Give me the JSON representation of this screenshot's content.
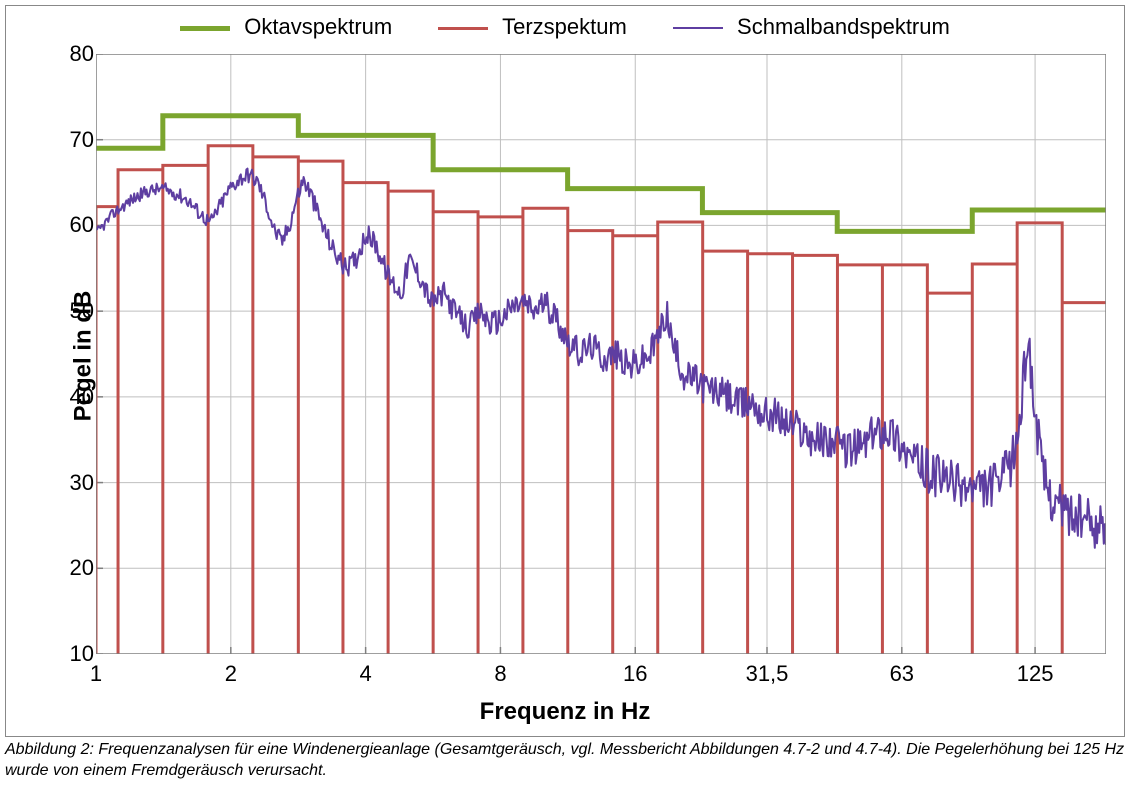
{
  "caption": "Abbildung 2: Frequenzanalysen für eine Windenergieanlage (Gesamtgeräusch, vgl. Messbericht Abbildungen 4.7-2 und 4.7-4). Die Pegelerhöhung bei 125 Hz wurde von einem Fremdgeräusch verursacht.",
  "legend": {
    "items": [
      {
        "label": "Oktavspektrum",
        "color": "#7ba52e",
        "width": 5
      },
      {
        "label": "Terzspektum",
        "color": "#c0504d",
        "width": 3
      },
      {
        "label": "Schmalbandspektrum",
        "color": "#5e3ea1",
        "width": 2
      }
    ]
  },
  "chart": {
    "type": "line-step-log",
    "xlabel": "Frequenz in Hz",
    "ylabel": "Pegel in dB",
    "ylim": [
      10,
      80
    ],
    "yticks": [
      10,
      20,
      30,
      40,
      50,
      60,
      70,
      80
    ],
    "xscale": "log",
    "xlim_log": [
      1,
      180
    ],
    "xticks": [
      {
        "value": 1,
        "label": "1"
      },
      {
        "value": 2,
        "label": "2"
      },
      {
        "value": 4,
        "label": "4"
      },
      {
        "value": 8,
        "label": "8"
      },
      {
        "value": 16,
        "label": "16"
      },
      {
        "value": 31.5,
        "label": "31,5"
      },
      {
        "value": 63,
        "label": "63"
      },
      {
        "value": 125,
        "label": "125"
      }
    ],
    "grid_color": "#bfbfbf",
    "axis_color": "#7f7f7f",
    "background_color": "#ffffff",
    "oktav": {
      "color": "#7ba52e",
      "line_width": 5,
      "bands": [
        {
          "lo": 1.0,
          "hi": 1.41,
          "level": 69.0
        },
        {
          "lo": 1.41,
          "hi": 2.83,
          "level": 72.8
        },
        {
          "lo": 2.83,
          "hi": 5.66,
          "level": 70.5
        },
        {
          "lo": 5.66,
          "hi": 11.3,
          "level": 66.5
        },
        {
          "lo": 11.3,
          "hi": 22.6,
          "level": 64.3
        },
        {
          "lo": 22.6,
          "hi": 45.2,
          "level": 61.5
        },
        {
          "lo": 45.2,
          "hi": 90.5,
          "level": 59.3
        },
        {
          "lo": 90.5,
          "hi": 181,
          "level": 61.8
        }
      ]
    },
    "terz": {
      "color": "#c0504d",
      "line_width": 3,
      "bands": [
        {
          "lo": 1.0,
          "hi": 1.12,
          "level": 62.2
        },
        {
          "lo": 1.12,
          "hi": 1.41,
          "level": 66.5
        },
        {
          "lo": 1.41,
          "hi": 1.78,
          "level": 67.0
        },
        {
          "lo": 1.78,
          "hi": 2.24,
          "level": 69.3
        },
        {
          "lo": 2.24,
          "hi": 2.83,
          "level": 68.0
        },
        {
          "lo": 2.83,
          "hi": 3.56,
          "level": 67.5
        },
        {
          "lo": 3.56,
          "hi": 4.49,
          "level": 65.0
        },
        {
          "lo": 4.49,
          "hi": 5.66,
          "level": 64.0
        },
        {
          "lo": 5.66,
          "hi": 7.13,
          "level": 61.6
        },
        {
          "lo": 7.13,
          "hi": 8.98,
          "level": 61.0
        },
        {
          "lo": 8.98,
          "hi": 11.31,
          "level": 62.0
        },
        {
          "lo": 11.31,
          "hi": 14.25,
          "level": 59.4
        },
        {
          "lo": 14.25,
          "hi": 17.96,
          "level": 58.8
        },
        {
          "lo": 17.96,
          "hi": 22.63,
          "level": 60.4
        },
        {
          "lo": 22.63,
          "hi": 28.51,
          "level": 57.0
        },
        {
          "lo": 28.51,
          "hi": 35.92,
          "level": 56.7
        },
        {
          "lo": 35.92,
          "hi": 45.25,
          "level": 56.5
        },
        {
          "lo": 45.25,
          "hi": 57.02,
          "level": 55.4
        },
        {
          "lo": 57.02,
          "hi": 71.84,
          "level": 55.4
        },
        {
          "lo": 71.84,
          "hi": 90.51,
          "level": 52.1
        },
        {
          "lo": 90.51,
          "hi": 114.0,
          "level": 55.5
        },
        {
          "lo": 114.0,
          "hi": 143.7,
          "level": 60.3
        },
        {
          "lo": 143.7,
          "hi": 181.0,
          "level": 51.0
        }
      ]
    },
    "schmalband": {
      "color": "#5e3ea1",
      "line_width": 2,
      "noise_amp": 1.6,
      "base_points": [
        [
          1.0,
          59.0
        ],
        [
          1.1,
          61.5
        ],
        [
          1.2,
          63.0
        ],
        [
          1.3,
          64.0
        ],
        [
          1.4,
          64.3
        ],
        [
          1.5,
          63.8
        ],
        [
          1.6,
          63.0
        ],
        [
          1.7,
          61.5
        ],
        [
          1.8,
          60.3
        ],
        [
          1.9,
          62.5
        ],
        [
          2.0,
          64.5
        ],
        [
          2.1,
          65.5
        ],
        [
          2.2,
          66.0
        ],
        [
          2.3,
          65.0
        ],
        [
          2.4,
          62.5
        ],
        [
          2.5,
          59.5
        ],
        [
          2.6,
          58.0
        ],
        [
          2.7,
          60.0
        ],
        [
          2.8,
          63.0
        ],
        [
          2.9,
          65.3
        ],
        [
          3.0,
          64.0
        ],
        [
          3.2,
          60.0
        ],
        [
          3.4,
          57.0
        ],
        [
          3.6,
          55.0
        ],
        [
          3.8,
          56.0
        ],
        [
          4.0,
          59.0
        ],
        [
          4.2,
          58.0
        ],
        [
          4.5,
          54.0
        ],
        [
          4.8,
          52.0
        ],
        [
          5.0,
          56.0
        ],
        [
          5.3,
          54.0
        ],
        [
          5.6,
          51.0
        ],
        [
          6.0,
          52.0
        ],
        [
          6.4,
          49.5
        ],
        [
          6.8,
          48.0
        ],
        [
          7.2,
          50.0
        ],
        [
          7.6,
          48.5
        ],
        [
          8.0,
          49.0
        ],
        [
          8.5,
          50.5
        ],
        [
          9.0,
          51.0
        ],
        [
          9.5,
          50.0
        ],
        [
          10.0,
          51.0
        ],
        [
          10.6,
          49.5
        ],
        [
          11.2,
          47.0
        ],
        [
          12.0,
          45.0
        ],
        [
          12.8,
          46.0
        ],
        [
          13.6,
          44.5
        ],
        [
          14.5,
          45.0
        ],
        [
          15.4,
          43.5
        ],
        [
          16.3,
          44.0
        ],
        [
          17.3,
          45.0
        ],
        [
          18.3,
          48.0
        ],
        [
          18.8,
          50.0
        ],
        [
          19.4,
          46.0
        ],
        [
          20.6,
          42.5
        ],
        [
          21.8,
          42.0
        ],
        [
          23.1,
          41.0
        ],
        [
          24.5,
          40.5
        ],
        [
          25.9,
          40.0
        ],
        [
          27.5,
          39.0
        ],
        [
          29.1,
          39.5
        ],
        [
          30.9,
          38.0
        ],
        [
          32.7,
          38.0
        ],
        [
          34.6,
          37.0
        ],
        [
          36.8,
          36.5
        ],
        [
          38.9,
          35.5
        ],
        [
          41.2,
          35.0
        ],
        [
          43.7,
          35.0
        ],
        [
          46.3,
          34.0
        ],
        [
          49.0,
          34.0
        ],
        [
          52.0,
          34.5
        ],
        [
          55.1,
          36.0
        ],
        [
          58.3,
          36.5
        ],
        [
          61.8,
          35.0
        ],
        [
          65.5,
          33.0
        ],
        [
          69.4,
          32.0
        ],
        [
          73.5,
          31.0
        ],
        [
          77.9,
          30.5
        ],
        [
          82.5,
          30.0
        ],
        [
          87.4,
          29.5
        ],
        [
          92.6,
          29.0
        ],
        [
          98.1,
          29.5
        ],
        [
          104.0,
          30.0
        ],
        [
          110.2,
          32.0
        ],
        [
          114.0,
          35.0
        ],
        [
          117.0,
          40.0
        ],
        [
          119.0,
          45.0
        ],
        [
          120.5,
          47.5
        ],
        [
          122.0,
          44.0
        ],
        [
          125.0,
          38.0
        ],
        [
          130.0,
          31.0
        ],
        [
          137.0,
          28.0
        ],
        [
          145.0,
          27.0
        ],
        [
          154.0,
          26.0
        ],
        [
          163.0,
          25.5
        ],
        [
          173.0,
          25.0
        ],
        [
          181.0,
          24.0
        ]
      ]
    }
  }
}
